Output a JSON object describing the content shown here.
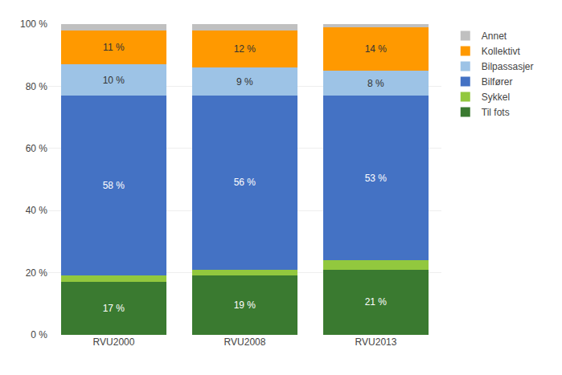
{
  "chart_data": {
    "type": "bar",
    "stacked": true,
    "categories": [
      "RVU2000",
      "RVU2008",
      "RVU2013"
    ],
    "series": [
      {
        "name": "Til fots",
        "color": "#3A7A30",
        "values": [
          17,
          19,
          21
        ],
        "data_labels": true,
        "value_labels": [
          "17 %",
          "19 %",
          "21 %"
        ]
      },
      {
        "name": "Sykkel",
        "color": "#92C83E",
        "values": [
          2,
          2,
          3
        ],
        "data_labels": false
      },
      {
        "name": "Bilfører",
        "color": "#4472C4",
        "values": [
          58,
          56,
          53
        ],
        "data_labels": true,
        "value_labels": [
          "58 %",
          "56 %",
          "53 %"
        ]
      },
      {
        "name": "Bilpassasjer",
        "color": "#9DC3E6",
        "values": [
          10,
          9,
          8
        ],
        "data_labels": true,
        "value_labels": [
          "10 %",
          "9 %",
          "8 %"
        ]
      },
      {
        "name": "Kollektivt",
        "color": "#FF9900",
        "values": [
          11,
          12,
          14
        ],
        "data_labels": true,
        "value_labels": [
          "11 %",
          "12 %",
          "14 %"
        ]
      },
      {
        "name": "Annet",
        "color": "#C0C0C0",
        "values": [
          2,
          2,
          1
        ],
        "data_labels": false
      }
    ],
    "ylim": [
      0,
      100
    ],
    "yticks": [
      {
        "value": 0,
        "label": "0 %"
      },
      {
        "value": 20,
        "label": "20 %"
      },
      {
        "value": 40,
        "label": "40 %"
      },
      {
        "value": 60,
        "label": "60 %"
      },
      {
        "value": 80,
        "label": "80 %"
      },
      {
        "value": 100,
        "label": "100 %"
      }
    ],
    "grid": true,
    "legend": "right"
  }
}
